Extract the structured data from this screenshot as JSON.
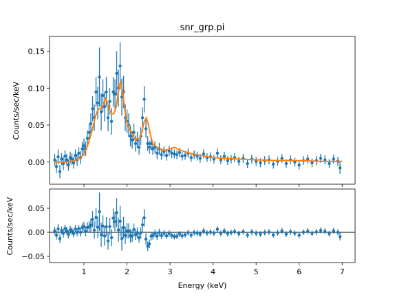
{
  "chart_data": [
    {
      "type": "scatter",
      "panel": "spectrum",
      "title": "snr_grp.pi",
      "xlabel": "",
      "ylabel": "Counts/sec/keV",
      "xlim": [
        0.2,
        7.3
      ],
      "ylim": [
        -0.03,
        0.17
      ],
      "yticks": [
        0.0,
        0.05,
        0.1,
        0.15
      ],
      "ytick_labels": [
        "0.00",
        "0.05",
        "0.10",
        "0.15"
      ],
      "grid": false,
      "colors": {
        "data": "#1f77b4",
        "model": "#ff7f0e"
      },
      "series": [
        {
          "role": "data-with-errorbars",
          "x": [
            0.32,
            0.36,
            0.4,
            0.44,
            0.48,
            0.52,
            0.56,
            0.6,
            0.64,
            0.68,
            0.72,
            0.76,
            0.8,
            0.84,
            0.88,
            0.92,
            0.96,
            1.0,
            1.04,
            1.08,
            1.12,
            1.16,
            1.2,
            1.24,
            1.28,
            1.32,
            1.36,
            1.4,
            1.44,
            1.48,
            1.52,
            1.56,
            1.6,
            1.64,
            1.68,
            1.72,
            1.76,
            1.8,
            1.84,
            1.88,
            1.92,
            1.96,
            2.0,
            2.04,
            2.08,
            2.12,
            2.16,
            2.2,
            2.24,
            2.28,
            2.32,
            2.36,
            2.4,
            2.44,
            2.48,
            2.52,
            2.56,
            2.6,
            2.65,
            2.7,
            2.75,
            2.8,
            2.86,
            2.92,
            2.98,
            3.04,
            3.1,
            3.16,
            3.22,
            3.28,
            3.35,
            3.42,
            3.49,
            3.56,
            3.63,
            3.7,
            3.78,
            3.86,
            3.94,
            4.02,
            4.1,
            4.18,
            4.26,
            4.34,
            4.42,
            4.5,
            4.6,
            4.7,
            4.8,
            4.9,
            5.0,
            5.1,
            5.2,
            5.3,
            5.4,
            5.5,
            5.6,
            5.7,
            5.8,
            5.9,
            6.0,
            6.1,
            6.2,
            6.3,
            6.4,
            6.5,
            6.6,
            6.7,
            6.8,
            6.9,
            6.95
          ],
          "y": [
            0.003,
            -0.006,
            0.007,
            -0.013,
            0.004,
            -0.002,
            0.008,
            0.003,
            -0.004,
            0.006,
            0.004,
            -0.001,
            0.009,
            0.003,
            0.012,
            0.006,
            0.018,
            0.022,
            0.018,
            0.032,
            0.04,
            0.052,
            0.072,
            0.06,
            0.095,
            0.08,
            0.115,
            0.068,
            0.09,
            0.075,
            0.095,
            0.06,
            0.082,
            0.055,
            0.095,
            0.092,
            0.12,
            0.1,
            0.13,
            0.088,
            0.095,
            0.06,
            0.055,
            0.05,
            0.035,
            0.03,
            0.04,
            0.025,
            0.03,
            0.02,
            0.035,
            0.06,
            0.085,
            0.045,
            0.025,
            0.02,
            0.025,
            0.018,
            0.02,
            0.012,
            0.018,
            0.01,
            0.014,
            0.009,
            0.015,
            0.012,
            0.011,
            0.01,
            0.013,
            0.008,
            0.009,
            0.012,
            0.006,
            0.01,
            0.008,
            0.005,
            0.011,
            0.006,
            0.007,
            0.004,
            0.012,
            0.003,
            0.008,
            0.002,
            0.004,
            0.006,
            0.001,
            0.005,
            -0.002,
            0.004,
            0.001,
            -0.001,
            0.002,
            0.003,
            -0.003,
            0.001,
            0.005,
            -0.002,
            0.003,
            0.0,
            -0.004,
            0.002,
            0.004,
            -0.001,
            0.002,
            0.005,
            0.003,
            -0.002,
            0.004,
            0.001,
            -0.008
          ],
          "err": [
            0.008,
            0.009,
            0.01,
            0.009,
            0.008,
            0.009,
            0.008,
            0.008,
            0.008,
            0.008,
            0.008,
            0.008,
            0.008,
            0.008,
            0.008,
            0.009,
            0.009,
            0.01,
            0.01,
            0.011,
            0.012,
            0.014,
            0.017,
            0.018,
            0.02,
            0.022,
            0.04,
            0.025,
            0.022,
            0.02,
            0.02,
            0.018,
            0.018,
            0.018,
            0.02,
            0.02,
            0.03,
            0.025,
            0.032,
            0.025,
            0.022,
            0.018,
            0.016,
            0.016,
            0.014,
            0.012,
            0.012,
            0.011,
            0.011,
            0.01,
            0.012,
            0.014,
            0.018,
            0.012,
            0.01,
            0.009,
            0.009,
            0.008,
            0.008,
            0.008,
            0.008,
            0.007,
            0.007,
            0.007,
            0.007,
            0.007,
            0.006,
            0.006,
            0.006,
            0.006,
            0.006,
            0.006,
            0.006,
            0.006,
            0.006,
            0.006,
            0.006,
            0.006,
            0.006,
            0.006,
            0.006,
            0.006,
            0.006,
            0.006,
            0.006,
            0.006,
            0.006,
            0.006,
            0.006,
            0.006,
            0.006,
            0.006,
            0.006,
            0.006,
            0.006,
            0.006,
            0.006,
            0.006,
            0.006,
            0.006,
            0.006,
            0.006,
            0.006,
            0.006,
            0.006,
            0.006,
            0.006,
            0.006,
            0.006,
            0.006,
            0.008
          ]
        },
        {
          "role": "model",
          "x": [
            0.3,
            0.4,
            0.5,
            0.6,
            0.7,
            0.8,
            0.9,
            1.0,
            1.1,
            1.2,
            1.25,
            1.3,
            1.35,
            1.4,
            1.45,
            1.5,
            1.55,
            1.6,
            1.65,
            1.7,
            1.75,
            1.8,
            1.85,
            1.9,
            1.95,
            2.0,
            2.1,
            2.2,
            2.3,
            2.35,
            2.4,
            2.45,
            2.5,
            2.55,
            2.6,
            2.7,
            2.8,
            2.9,
            3.0,
            3.1,
            3.2,
            3.4,
            3.6,
            3.8,
            4.0,
            4.3,
            4.6,
            5.0,
            5.5,
            6.0,
            6.5,
            7.0
          ],
          "y": [
            0.0,
            0.0,
            0.0,
            0.0,
            0.001,
            0.002,
            0.005,
            0.01,
            0.025,
            0.045,
            0.058,
            0.068,
            0.072,
            0.073,
            0.078,
            0.086,
            0.08,
            0.07,
            0.065,
            0.066,
            0.075,
            0.095,
            0.11,
            0.095,
            0.07,
            0.052,
            0.04,
            0.03,
            0.032,
            0.042,
            0.055,
            0.06,
            0.05,
            0.035,
            0.025,
            0.02,
            0.017,
            0.016,
            0.018,
            0.02,
            0.017,
            0.013,
            0.01,
            0.008,
            0.006,
            0.005,
            0.004,
            0.003,
            0.002,
            0.002,
            0.001,
            0.001
          ]
        }
      ]
    },
    {
      "type": "scatter",
      "panel": "residuals",
      "title": "",
      "xlabel": "Energy (keV)",
      "ylabel": "Counts/sec/keV",
      "xlim": [
        0.2,
        7.3
      ],
      "ylim": [
        -0.063,
        0.09
      ],
      "xticks": [
        1,
        2,
        3,
        4,
        5,
        6,
        7
      ],
      "xtick_labels": [
        "1",
        "2",
        "3",
        "4",
        "5",
        "6",
        "7"
      ],
      "yticks": [
        -0.05,
        0.0,
        0.05
      ],
      "ytick_labels": [
        "−0.05",
        "0.00",
        "0.05"
      ],
      "reference_line": 0.0,
      "grid": false,
      "colors": {
        "data": "#1f77b4",
        "reference": "#000000"
      }
    }
  ]
}
